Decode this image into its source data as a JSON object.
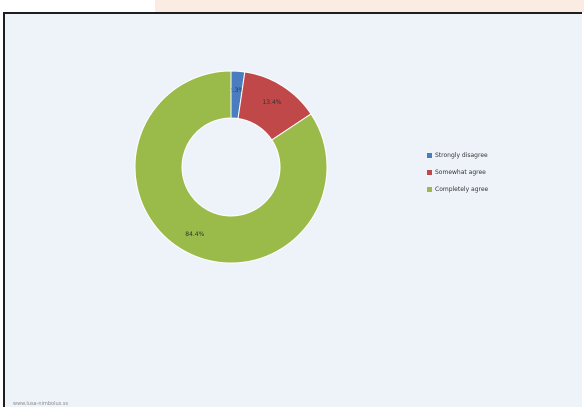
{
  "chart_data": {
    "type": "pie",
    "title": "",
    "donut": true,
    "slices": [
      {
        "label": "Strongly disagree",
        "value": 2.3,
        "display": "2.3%",
        "color": "#4a7dbf"
      },
      {
        "label": "Somewhat agree",
        "value": 13.4,
        "display": "13.4%",
        "color": "#c04848"
      },
      {
        "label": "Completely agree",
        "value": 84.4,
        "display": "84.4%",
        "color": "#9aba4a"
      }
    ],
    "legend_position": "right"
  },
  "footer": {
    "text": "www.lusa-nimbolus.ss"
  }
}
